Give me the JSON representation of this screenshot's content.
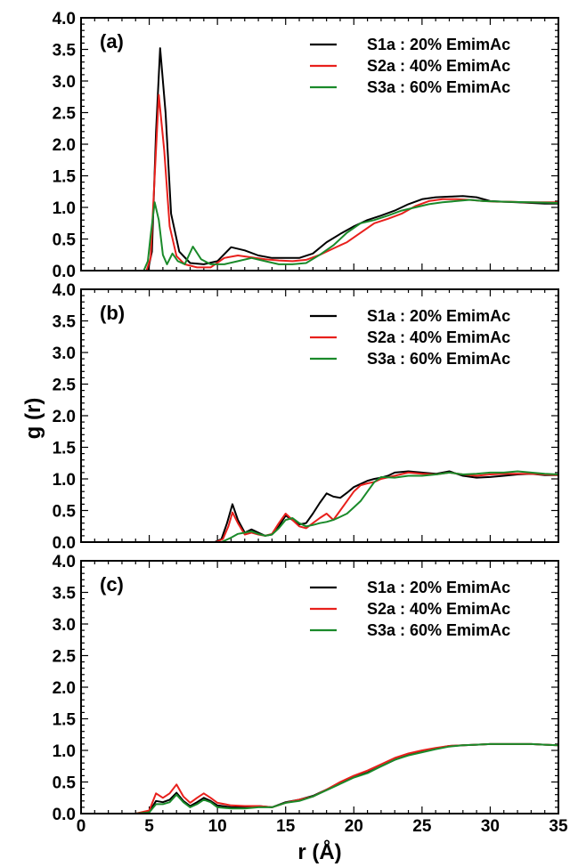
{
  "chart_data": {
    "type": "line",
    "ylabel": "g (r)",
    "xlabel": "r (Å)",
    "xlim": [
      0,
      35
    ],
    "x_ticks": [
      "0",
      "5",
      "10",
      "15",
      "20",
      "25",
      "30",
      "35"
    ],
    "ylim": [
      0,
      4
    ],
    "y_ticks": [
      "0.0",
      "0.5",
      "1.0",
      "1.5",
      "2.0",
      "2.5",
      "3.0",
      "3.5",
      "4.0"
    ],
    "grid": false,
    "legend_placement": "top-right",
    "colors": {
      "S1a": "#000000",
      "S2a": "#e8201c",
      "S3a": "#1a8a2a"
    },
    "panels": [
      {
        "label": "(a)",
        "series": [
          {
            "name": "S1a : 20% EmimAc",
            "color": "#000000",
            "x": [
              0,
              4.9,
              5.2,
              5.5,
              5.8,
              6.2,
              6.6,
              7.2,
              8,
              9,
              10,
              11,
              12,
              13,
              14,
              15,
              16,
              17,
              18,
              19,
              20,
              21,
              22,
              23,
              24,
              25,
              26,
              27,
              28,
              29,
              30,
              31,
              32,
              33,
              34,
              35
            ],
            "y": [
              0,
              0,
              0.3,
              2.2,
              3.52,
              2.5,
              0.9,
              0.3,
              0.12,
              0.1,
              0.15,
              0.37,
              0.32,
              0.24,
              0.2,
              0.2,
              0.2,
              0.27,
              0.45,
              0.58,
              0.7,
              0.8,
              0.87,
              0.95,
              1.05,
              1.13,
              1.16,
              1.17,
              1.18,
              1.16,
              1.1,
              1.09,
              1.08,
              1.07,
              1.06,
              1.06
            ]
          },
          {
            "name": "S2a : 40% EmimAc",
            "color": "#e8201c",
            "x": [
              0,
              4.8,
              5.1,
              5.4,
              5.7,
              6.1,
              6.5,
              7,
              7.6,
              8.5,
              9.5,
              10.5,
              11.5,
              12.5,
              13.5,
              14.5,
              15.5,
              16.5,
              17.5,
              18.5,
              19.5,
              20.5,
              21.5,
              22.5,
              23.5,
              24.5,
              25.5,
              26.5,
              27.5,
              28.5,
              29.5,
              30.5,
              31.5,
              32.5,
              33.5,
              35
            ],
            "y": [
              0,
              0,
              0.2,
              1.5,
              2.78,
              1.9,
              0.7,
              0.23,
              0.1,
              0.05,
              0.05,
              0.2,
              0.24,
              0.21,
              0.18,
              0.16,
              0.15,
              0.17,
              0.25,
              0.35,
              0.45,
              0.6,
              0.75,
              0.82,
              0.9,
              1.02,
              1.1,
              1.13,
              1.13,
              1.12,
              1.1,
              1.09,
              1.09,
              1.08,
              1.08,
              1.08
            ]
          },
          {
            "name": "S3a : 60% EmimAc",
            "color": "#1a8a2a",
            "x": [
              0,
              4.6,
              4.9,
              5.1,
              5.4,
              5.7,
              6,
              6.3,
              6.7,
              7.1,
              7.6,
              8.2,
              8.8,
              9.5,
              10.5,
              11.5,
              12.5,
              13.5,
              14.5,
              15.5,
              16.5,
              17.5,
              18.5,
              19.5,
              20.5,
              21.5,
              22.5,
              23.5,
              24.5,
              25.5,
              26.5,
              27.5,
              28.5,
              29.5,
              31,
              33,
              35
            ],
            "y": [
              0,
              0,
              0.15,
              0.55,
              1.08,
              0.8,
              0.25,
              0.1,
              0.27,
              0.15,
              0.1,
              0.38,
              0.18,
              0.1,
              0.1,
              0.15,
              0.2,
              0.15,
              0.1,
              0.1,
              0.12,
              0.25,
              0.4,
              0.6,
              0.75,
              0.8,
              0.87,
              0.95,
              1.0,
              1.05,
              1.08,
              1.1,
              1.12,
              1.1,
              1.09,
              1.08,
              1.07
            ]
          }
        ]
      },
      {
        "label": "(b)",
        "series": [
          {
            "name": "S1a : 20% EmimAc",
            "color": "#000000",
            "x": [
              0,
              9.8,
              10.3,
              10.7,
              11.1,
              11.5,
              12,
              12.5,
              13,
              13.5,
              14,
              14.5,
              15,
              15.5,
              16,
              16.5,
              17,
              17.5,
              18,
              18.5,
              19,
              19.5,
              20,
              20.5,
              21,
              21.5,
              22,
              22.5,
              23,
              24,
              25,
              26,
              27,
              28,
              29,
              30,
              31,
              32,
              33,
              34,
              35
            ],
            "y": [
              0,
              0,
              0.05,
              0.3,
              0.6,
              0.35,
              0.15,
              0.2,
              0.15,
              0.1,
              0.12,
              0.25,
              0.42,
              0.35,
              0.28,
              0.3,
              0.45,
              0.62,
              0.77,
              0.72,
              0.7,
              0.78,
              0.87,
              0.92,
              0.97,
              1.0,
              1.02,
              1.05,
              1.1,
              1.12,
              1.1,
              1.08,
              1.12,
              1.05,
              1.02,
              1.03,
              1.05,
              1.07,
              1.08,
              1.06,
              1.06
            ]
          },
          {
            "name": "S2a : 40% EmimAc",
            "color": "#e8201c",
            "x": [
              0,
              9.9,
              10.4,
              10.8,
              11.1,
              11.5,
              12,
              12.5,
              13,
              13.5,
              14,
              14.5,
              15,
              15.5,
              16,
              16.5,
              17,
              17.5,
              18,
              18.5,
              19,
              19.5,
              20,
              20.5,
              21,
              21.5,
              22,
              23,
              24,
              25,
              26,
              27,
              28,
              29,
              30,
              31,
              32,
              33,
              34,
              35
            ],
            "y": [
              0,
              0,
              0.05,
              0.25,
              0.47,
              0.3,
              0.12,
              0.15,
              0.12,
              0.1,
              0.13,
              0.3,
              0.45,
              0.35,
              0.25,
              0.22,
              0.3,
              0.38,
              0.45,
              0.35,
              0.5,
              0.65,
              0.8,
              0.9,
              0.93,
              0.95,
              1.0,
              1.05,
              1.1,
              1.08,
              1.07,
              1.1,
              1.07,
              1.05,
              1.07,
              1.08,
              1.08,
              1.08,
              1.07,
              1.06
            ]
          },
          {
            "name": "S3a : 60% EmimAc",
            "color": "#1a8a2a",
            "x": [
              0,
              10.3,
              11,
              11.5,
              12,
              12.5,
              13,
              13.5,
              14,
              14.5,
              15,
              15.5,
              16,
              16.5,
              17,
              17.5,
              18,
              18.5,
              19,
              19.5,
              20,
              20.5,
              21,
              21.5,
              22,
              23,
              24,
              25,
              26,
              27,
              28,
              29,
              30,
              31,
              32,
              33,
              34,
              35
            ],
            "y": [
              0,
              0,
              0.07,
              0.13,
              0.15,
              0.17,
              0.13,
              0.1,
              0.12,
              0.22,
              0.35,
              0.38,
              0.3,
              0.25,
              0.27,
              0.3,
              0.32,
              0.35,
              0.4,
              0.45,
              0.55,
              0.65,
              0.8,
              0.95,
              1.03,
              1.02,
              1.05,
              1.05,
              1.07,
              1.1,
              1.07,
              1.08,
              1.1,
              1.1,
              1.12,
              1.1,
              1.08,
              1.07
            ]
          }
        ]
      },
      {
        "label": "(c)",
        "series": [
          {
            "name": "S1a : 20% EmimAc",
            "color": "#000000",
            "x": [
              0,
              4,
              5,
              5.5,
              6,
              6.5,
              7,
              7.5,
              8,
              8.5,
              9,
              9.5,
              10,
              11,
              12,
              13,
              14,
              15,
              16,
              17,
              18,
              19,
              20,
              21,
              22,
              23,
              24,
              25,
              26,
              27,
              28,
              29,
              30,
              31,
              32,
              33,
              34,
              35
            ],
            "y": [
              0,
              0,
              0.03,
              0.2,
              0.18,
              0.22,
              0.33,
              0.2,
              0.12,
              0.18,
              0.25,
              0.2,
              0.13,
              0.1,
              0.1,
              0.12,
              0.1,
              0.18,
              0.22,
              0.28,
              0.38,
              0.48,
              0.58,
              0.65,
              0.75,
              0.85,
              0.93,
              0.98,
              1.03,
              1.07,
              1.08,
              1.09,
              1.1,
              1.1,
              1.1,
              1.1,
              1.09,
              1.08
            ]
          },
          {
            "name": "S2a : 40% EmimAc",
            "color": "#e8201c",
            "x": [
              0,
              4,
              5,
              5.5,
              6,
              6.5,
              7,
              7.5,
              8,
              8.5,
              9,
              9.5,
              10,
              11,
              12,
              13,
              14,
              15,
              16,
              17,
              18,
              19,
              20,
              21,
              22,
              23,
              24,
              25,
              26,
              27,
              28,
              29,
              30,
              31,
              32,
              33,
              34,
              35
            ],
            "y": [
              0,
              0,
              0.05,
              0.32,
              0.25,
              0.32,
              0.46,
              0.27,
              0.17,
              0.25,
              0.32,
              0.25,
              0.17,
              0.13,
              0.12,
              0.12,
              0.1,
              0.17,
              0.22,
              0.27,
              0.38,
              0.5,
              0.6,
              0.68,
              0.78,
              0.88,
              0.95,
              1.0,
              1.04,
              1.07,
              1.08,
              1.09,
              1.1,
              1.1,
              1.1,
              1.1,
              1.09,
              1.08
            ]
          },
          {
            "name": "S3a : 60% EmimAc",
            "color": "#1a8a2a",
            "x": [
              0,
              4,
              5,
              5.5,
              6,
              6.5,
              7,
              7.5,
              8,
              8.5,
              9,
              9.5,
              10,
              11,
              12,
              13,
              14,
              15,
              16,
              17,
              18,
              19,
              20,
              21,
              22,
              23,
              24,
              25,
              26,
              27,
              28,
              29,
              30,
              31,
              32,
              33,
              34,
              35
            ],
            "y": [
              0,
              0,
              0.02,
              0.15,
              0.15,
              0.18,
              0.3,
              0.18,
              0.1,
              0.15,
              0.22,
              0.18,
              0.1,
              0.08,
              0.08,
              0.1,
              0.1,
              0.17,
              0.2,
              0.27,
              0.37,
              0.47,
              0.57,
              0.64,
              0.75,
              0.85,
              0.92,
              0.97,
              1.02,
              1.06,
              1.08,
              1.09,
              1.1,
              1.1,
              1.1,
              1.1,
              1.09,
              1.08
            ]
          }
        ]
      }
    ]
  }
}
